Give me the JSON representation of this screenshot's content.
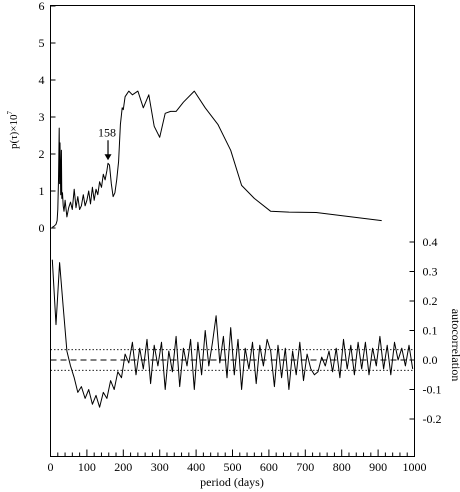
{
  "chart_data": [
    {
      "type": "line",
      "ylabel": "p(τ)×10",
      "ylabel_exponent": "7",
      "xlim": [
        0,
        1000
      ],
      "ylim": [
        0,
        6
      ],
      "y_ticks": [
        "0",
        "1",
        "2",
        "3",
        "4",
        "5",
        "6"
      ],
      "grid": false,
      "annotation": {
        "text": "158",
        "x": 158,
        "y": 1.75
      },
      "series": [
        {
          "x": [
            5,
            10,
            15,
            18,
            20,
            22,
            24,
            25,
            26,
            28,
            30,
            31,
            33,
            35,
            37,
            40,
            45,
            50,
            55,
            60,
            65,
            70,
            75,
            80,
            85,
            90,
            95,
            100,
            105,
            110,
            115,
            120,
            125,
            130,
            135,
            140,
            145,
            150,
            155,
            158,
            162,
            167,
            172,
            177,
            182,
            187,
            192,
            197,
            200,
            205,
            215,
            225,
            240,
            255,
            270,
            285,
            300,
            315,
            330,
            345,
            365,
            395,
            425,
            460,
            495,
            525,
            560,
            605,
            655,
            730,
            910
          ],
          "y": [
            0.02,
            0.05,
            0.1,
            0.2,
            0.5,
            1.3,
            2.7,
            1.2,
            2.3,
            0.9,
            2.1,
            0.8,
            0.95,
            0.6,
            0.45,
            0.75,
            0.3,
            0.55,
            0.7,
            0.5,
            1.05,
            0.55,
            0.85,
            0.5,
            0.6,
            0.9,
            0.6,
            0.75,
            1.0,
            0.65,
            1.1,
            0.75,
            1.05,
            0.9,
            1.25,
            1.1,
            1.45,
            1.3,
            1.55,
            1.75,
            1.7,
            1.2,
            0.85,
            0.95,
            1.3,
            1.8,
            2.8,
            3.25,
            3.2,
            3.55,
            3.7,
            3.6,
            3.7,
            3.25,
            3.6,
            2.75,
            2.45,
            3.1,
            3.15,
            3.15,
            3.4,
            3.7,
            3.25,
            2.8,
            2.1,
            1.15,
            0.8,
            0.45,
            0.43,
            0.42,
            0.2
          ]
        }
      ]
    },
    {
      "type": "line",
      "xlabel": "period (days)",
      "ylabel": "autocorrelation",
      "xlim": [
        0,
        1000
      ],
      "ylim": [
        -0.25,
        0.45
      ],
      "x_ticks": [
        "0",
        "100",
        "200",
        "300",
        "400",
        "500",
        "600",
        "700",
        "800",
        "900",
        "1000"
      ],
      "y_ticks": [
        "-0.2",
        "-0.1",
        "0.0",
        "0.1",
        "0.2",
        "0.3",
        "0.4"
      ],
      "grid": false,
      "reference_lines": [
        {
          "y": 0.0,
          "style": "dashed"
        },
        {
          "y": 0.035,
          "style": "dotted"
        },
        {
          "y": -0.035,
          "style": "dotted"
        }
      ],
      "series": [
        {
          "x": [
            5,
            15,
            25,
            35,
            45,
            55,
            65,
            75,
            85,
            95,
            105,
            115,
            125,
            135,
            145,
            155,
            165,
            175,
            185,
            195,
            205,
            215,
            225,
            235,
            245,
            255,
            265,
            275,
            285,
            295,
            305,
            315,
            325,
            335,
            345,
            355,
            365,
            375,
            385,
            395,
            405,
            415,
            425,
            435,
            445,
            455,
            465,
            475,
            485,
            495,
            505,
            515,
            525,
            535,
            545,
            555,
            565,
            575,
            585,
            595,
            605,
            615,
            625,
            635,
            645,
            655,
            665,
            675,
            685,
            695,
            705,
            715,
            725,
            735,
            745,
            755,
            765,
            775,
            785,
            795,
            805,
            815,
            825,
            835,
            845,
            855,
            865,
            875,
            885,
            895,
            905,
            915,
            925,
            935,
            945,
            955,
            965,
            975,
            985,
            995
          ],
          "y": [
            0.34,
            0.12,
            0.33,
            0.18,
            0.03,
            -0.02,
            -0.06,
            -0.11,
            -0.09,
            -0.13,
            -0.1,
            -0.15,
            -0.12,
            -0.16,
            -0.11,
            -0.13,
            -0.07,
            -0.1,
            -0.04,
            -0.06,
            0.02,
            -0.01,
            0.06,
            -0.05,
            0.04,
            -0.03,
            0.07,
            -0.08,
            0.05,
            -0.02,
            0.06,
            -0.1,
            0.03,
            -0.04,
            0.08,
            -0.09,
            0.04,
            -0.02,
            0.07,
            -0.1,
            0.06,
            -0.05,
            0.1,
            -0.02,
            0.06,
            0.15,
            -0.01,
            0.08,
            -0.06,
            0.11,
            -0.05,
            0.07,
            -0.1,
            0.04,
            -0.03,
            0.06,
            -0.08,
            0.05,
            -0.02,
            0.07,
            0.03,
            -0.09,
            0.05,
            -0.06,
            0.04,
            -0.1,
            0.03,
            -0.05,
            0.06,
            -0.07,
            0.02,
            -0.03,
            -0.05,
            -0.04,
            0.01,
            -0.02,
            0.03,
            -0.04,
            0.04,
            -0.06,
            0.07,
            -0.03,
            0.05,
            -0.05,
            0.06,
            -0.03,
            0.06,
            -0.05,
            0.04,
            -0.02,
            0.08,
            -0.03,
            0.05,
            -0.05,
            0.06,
            0.0,
            0.04,
            -0.02,
            0.05,
            -0.03
          ]
        }
      ]
    }
  ]
}
